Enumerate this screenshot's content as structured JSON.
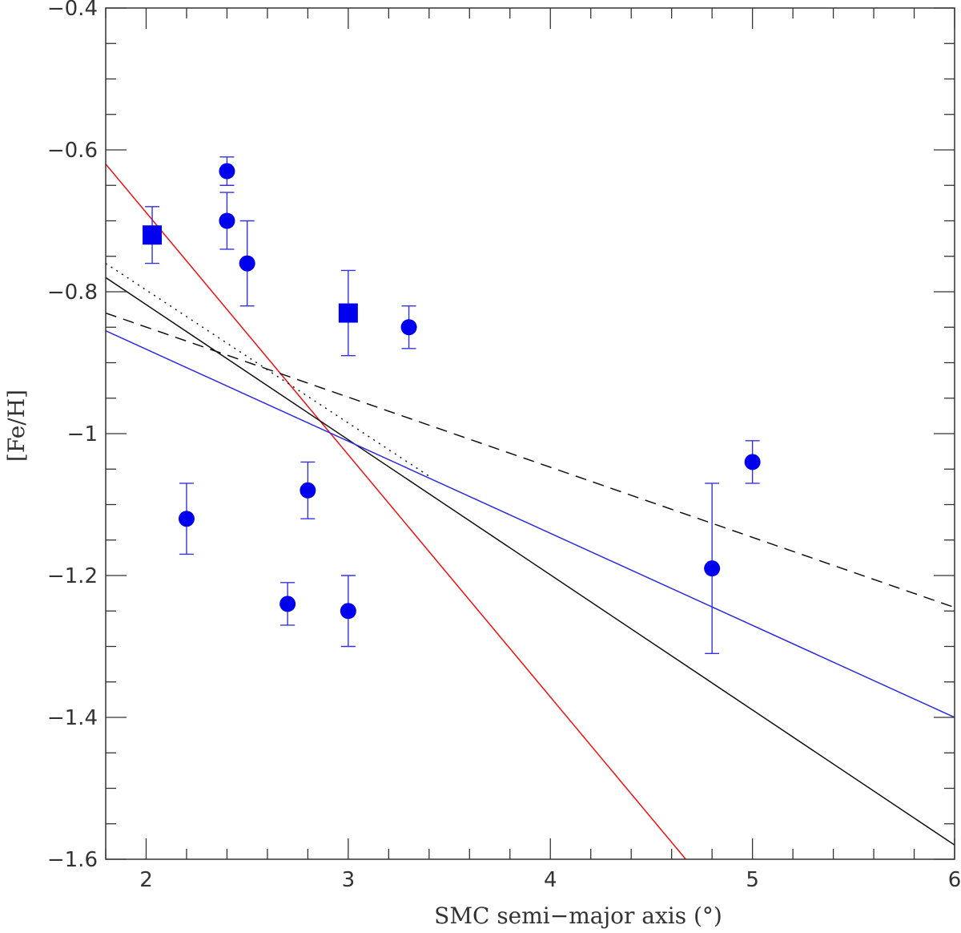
{
  "chart_data": {
    "type": "scatter",
    "title": "",
    "xlabel": "SMC semi−major axis (°)",
    "ylabel": "[Fe/H]",
    "xlim": [
      1.8,
      6.0
    ],
    "ylim": [
      -1.6,
      -0.4
    ],
    "x_major_ticks": [
      2,
      3,
      4,
      5,
      6
    ],
    "x_tick_labels": [
      "2",
      "3",
      "4",
      "5",
      "6"
    ],
    "x_minor_step": 0.2,
    "y_major_ticks": [
      -1.6,
      -1.4,
      -1.2,
      -1.0,
      -0.8,
      -0.6,
      -0.4
    ],
    "y_tick_labels": [
      "−1.6",
      "−1.4",
      "−1.2",
      "−1",
      "−0.8",
      "−0.6",
      "−0.4"
    ],
    "y_minor_step": 0.05,
    "grid": false,
    "legend": "none",
    "colors": {
      "points": "#0000ee",
      "errorbars": "#3333dd",
      "blue_fit": "#2a2ae0",
      "red_fit": "#ee1111",
      "black_fit": "#111111"
    },
    "series": [
      {
        "marker": "circle",
        "color": "#0000ee",
        "points": [
          {
            "x": 2.2,
            "y": -1.12,
            "err": 0.05
          },
          {
            "x": 2.4,
            "y": -0.63,
            "err": 0.02
          },
          {
            "x": 2.4,
            "y": -0.7,
            "err": 0.04
          },
          {
            "x": 2.5,
            "y": -0.76,
            "err": 0.06
          },
          {
            "x": 2.7,
            "y": -1.24,
            "err": 0.03
          },
          {
            "x": 2.8,
            "y": -1.08,
            "err": 0.04
          },
          {
            "x": 3.0,
            "y": -1.25,
            "err": 0.05
          },
          {
            "x": 3.3,
            "y": -0.85,
            "err": 0.03
          },
          {
            "x": 4.8,
            "y": -1.19,
            "err": 0.12
          },
          {
            "x": 5.0,
            "y": -1.04,
            "err": 0.03
          }
        ]
      },
      {
        "marker": "square",
        "color": "#0000ee",
        "points": [
          {
            "x": 2.03,
            "y": -0.72,
            "err": 0.04
          },
          {
            "x": 3.0,
            "y": -0.83,
            "err": 0.06
          }
        ]
      }
    ],
    "lines": [
      {
        "style": "solid",
        "color": "#ee1111",
        "x": [
          1.8,
          4.67
        ],
        "y": [
          -0.62,
          -1.6
        ]
      },
      {
        "style": "solid",
        "color": "#111111",
        "x": [
          1.8,
          6.0
        ],
        "y": [
          -0.78,
          -1.58
        ]
      },
      {
        "style": "solid",
        "color": "#2a2ae0",
        "x": [
          1.8,
          6.0
        ],
        "y": [
          -0.855,
          -1.4
        ]
      },
      {
        "style": "dashed",
        "color": "#111111",
        "x": [
          1.8,
          6.0
        ],
        "y": [
          -0.83,
          -1.245
        ]
      },
      {
        "style": "dotted",
        "color": "#111111",
        "x": [
          1.8,
          3.4
        ],
        "y": [
          -0.76,
          -1.06
        ]
      }
    ]
  }
}
